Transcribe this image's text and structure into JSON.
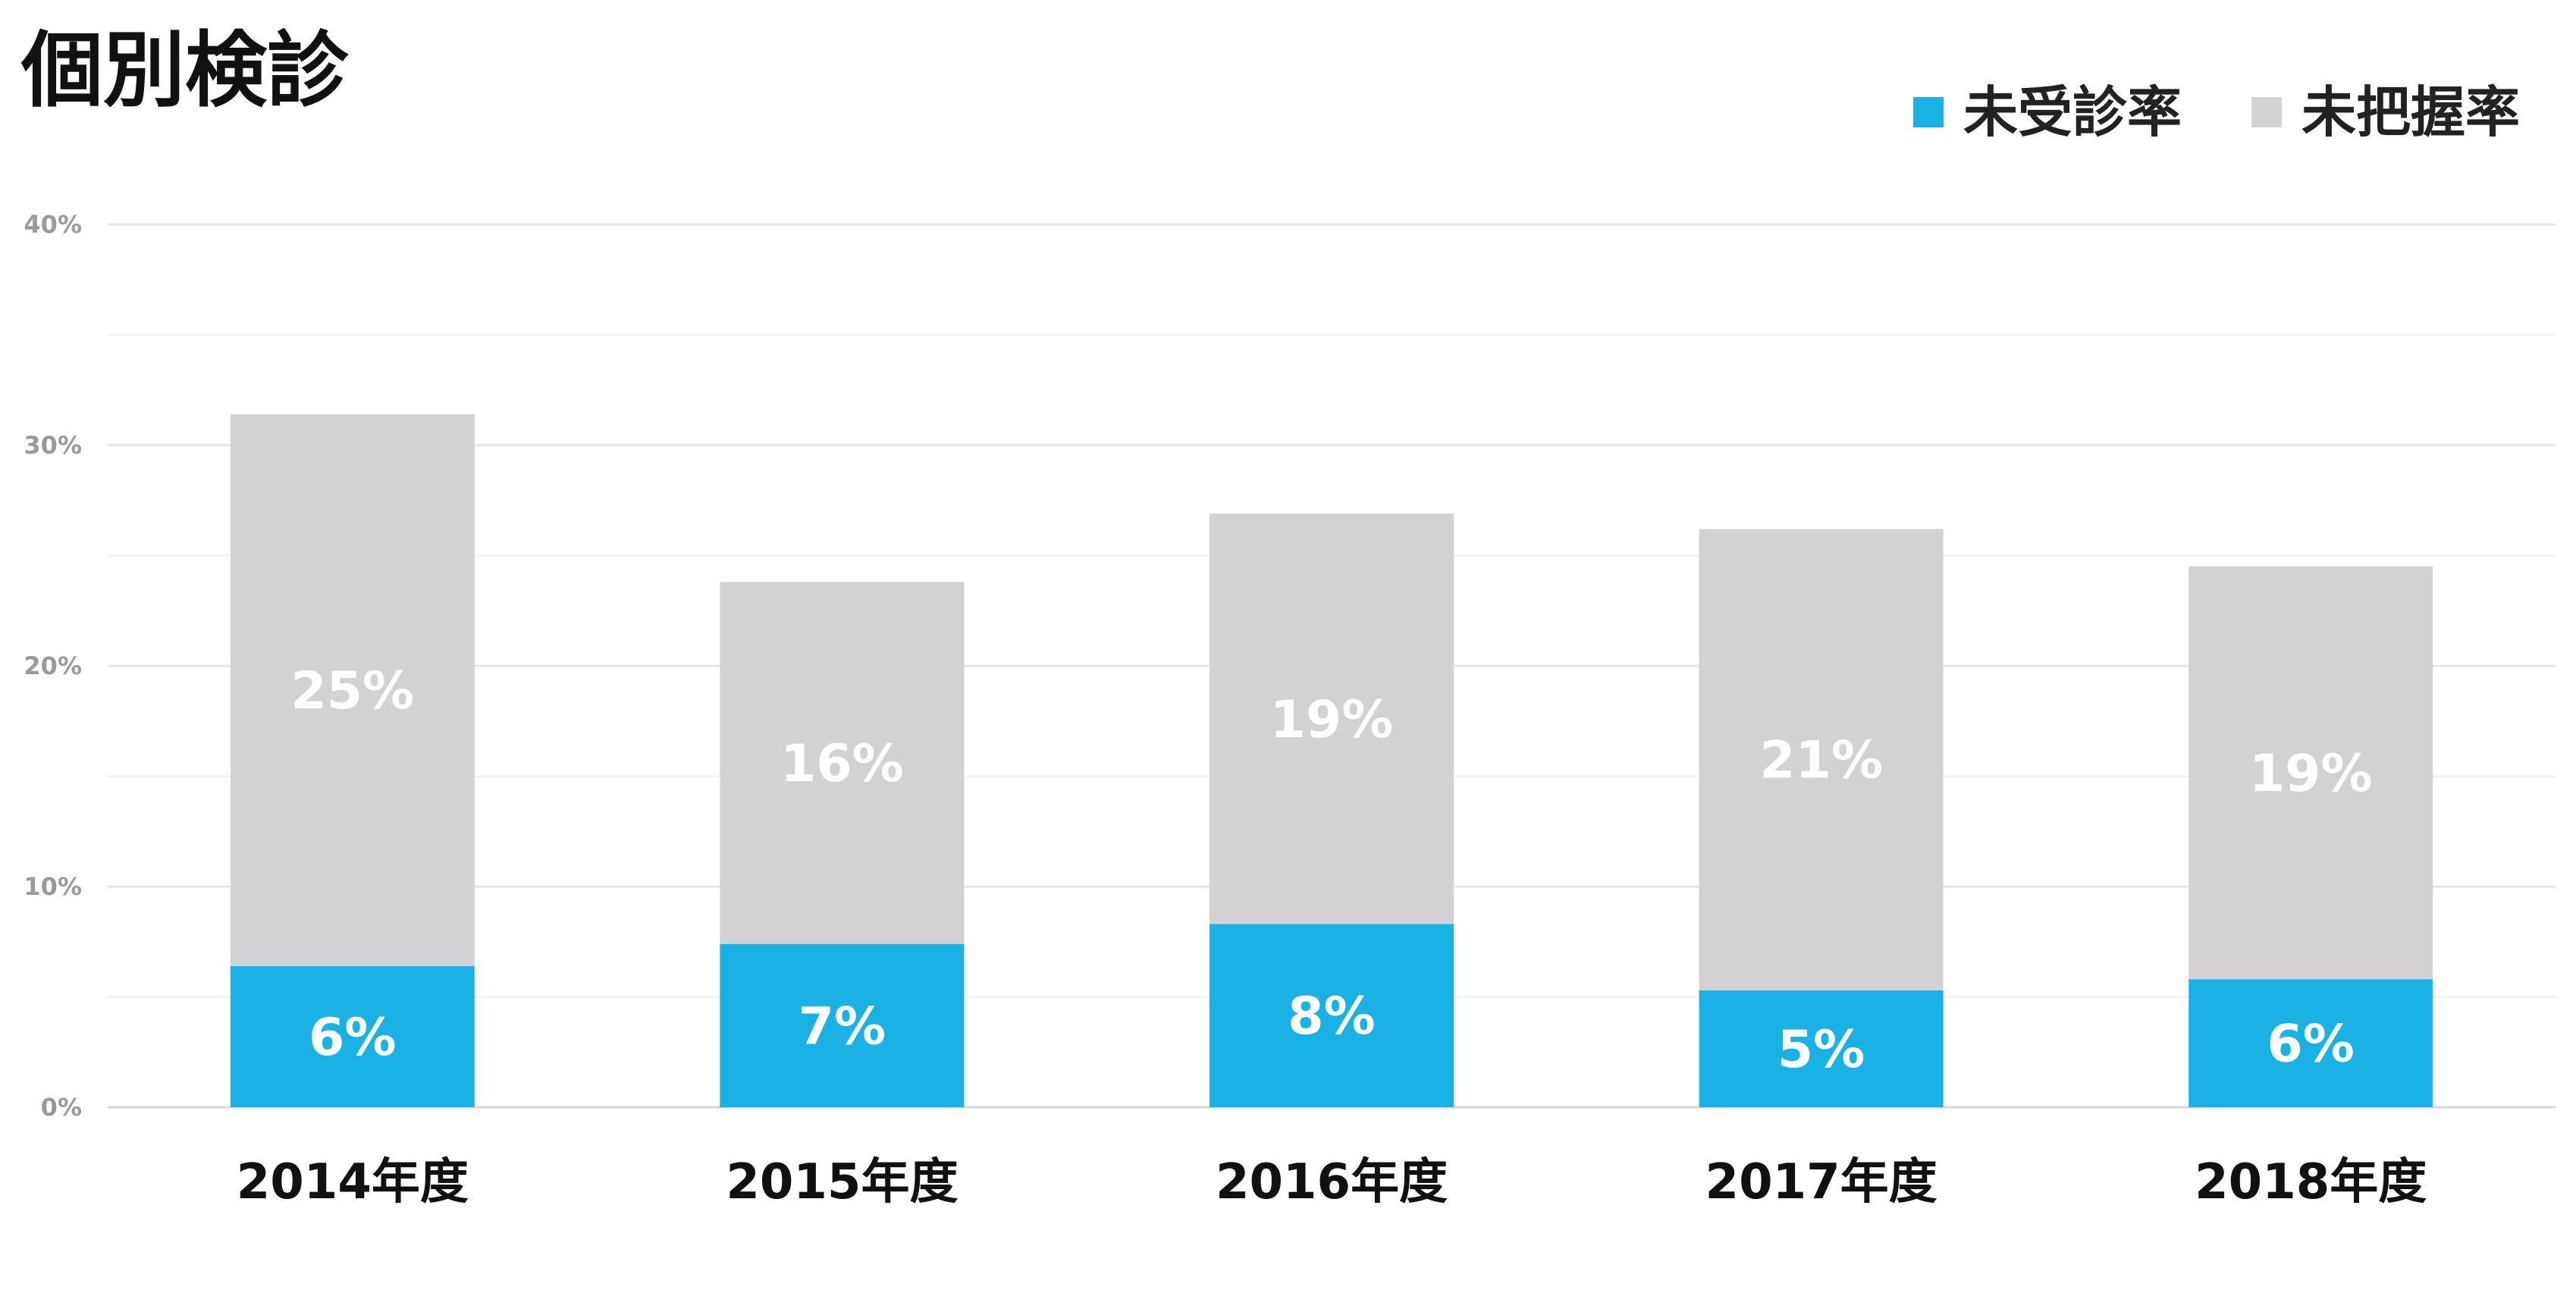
{
  "chart_data": {
    "type": "bar",
    "stacked": true,
    "title": "個別検診",
    "categories": [
      "2014年度",
      "2015年度",
      "2016年度",
      "2017年度",
      "2018年度"
    ],
    "series": [
      {
        "name": "未受診率",
        "values": [
          6.4,
          7.4,
          8.3,
          5.3,
          5.8
        ],
        "labels": [
          "6%",
          "7%",
          "8%",
          "5%",
          "6%"
        ],
        "color": "#1ab2e4"
      },
      {
        "name": "未把握率",
        "values": [
          25.0,
          16.4,
          18.6,
          20.9,
          18.7
        ],
        "labels": [
          "25%",
          "16%",
          "19%",
          "21%",
          "19%"
        ],
        "color": "#d3d1d3"
      }
    ],
    "ylim": [
      0,
      40
    ],
    "yticks": [
      0,
      10,
      20,
      30,
      40
    ],
    "ytick_labels": [
      "0%",
      "10%",
      "20%",
      "30%",
      "40%"
    ],
    "xlabel": "",
    "ylabel": "",
    "grid": true,
    "legend_position": "top-right"
  }
}
